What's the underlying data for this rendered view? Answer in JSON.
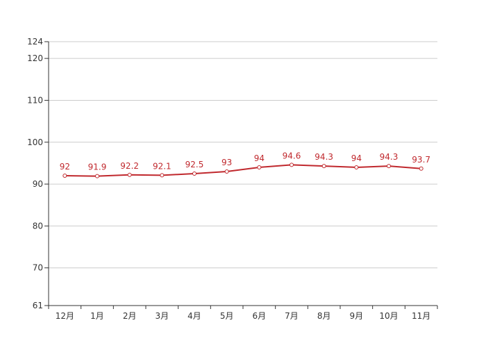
{
  "chart_data": {
    "type": "line",
    "title": "",
    "xlabel": "",
    "ylabel": "",
    "categories": [
      "12月",
      "1月",
      "2月",
      "3月",
      "4月",
      "5月",
      "6月",
      "7月",
      "8月",
      "9月",
      "10月",
      "11月"
    ],
    "series": [
      {
        "values": [
          92,
          91.9,
          92.2,
          92.1,
          92.5,
          93,
          94,
          94.6,
          94.3,
          94,
          94.3,
          93.7
        ],
        "data_labels": [
          "92",
          "91.9",
          "92.2",
          "92.1",
          "92.5",
          "93",
          "94",
          "94.6",
          "94.3",
          "94",
          "94.3",
          "93.7"
        ],
        "color": "#c0282d"
      }
    ],
    "ylim": [
      61,
      124
    ],
    "yticks": [
      61,
      70,
      80,
      90,
      100,
      110,
      120,
      124
    ],
    "grid": true,
    "legend": "none",
    "colors": {
      "line": "#c0282d",
      "label": "#c0282d",
      "grid": "#cccccc",
      "axis": "#333333",
      "tick_text": "#333333"
    }
  }
}
